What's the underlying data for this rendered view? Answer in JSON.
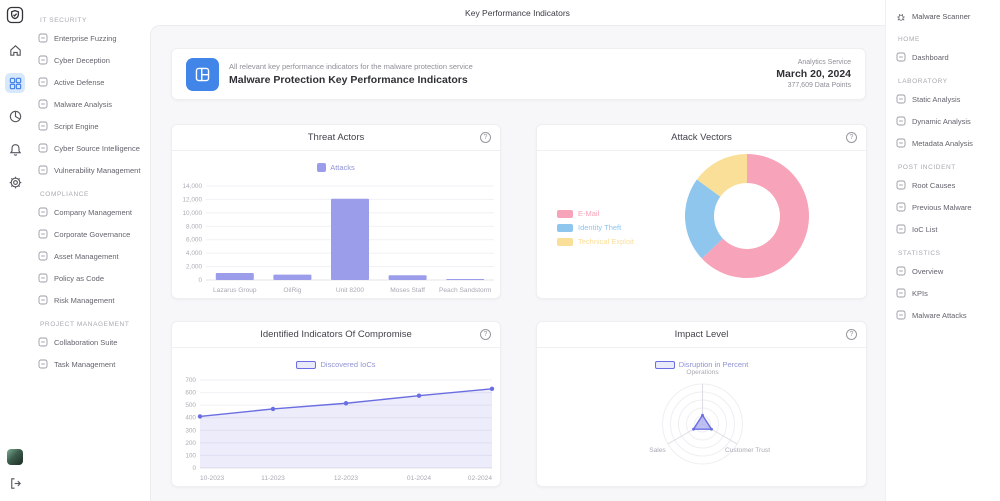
{
  "top_bar": {
    "title": "Key Performance Indicators"
  },
  "colors": {
    "accent": "#4285E8",
    "accent_light": "#D8E8FB",
    "purple": "#9B9DEB",
    "purple_dark": "#6B6EE0",
    "pink": "#F7A3B9",
    "blue": "#8FC6ED",
    "yellow": "#FADF98"
  },
  "left_rail": {
    "icons": [
      "app-logo-shield-icon",
      "home-icon",
      "dashboard-grid-icon",
      "pie-chart-icon",
      "notifications-bell-icon",
      "settings-gear-icon"
    ],
    "bottom": [
      "user-avatar",
      "logout-icon"
    ],
    "active_index": 2
  },
  "sidebar_left": {
    "sections": [
      {
        "label": "IT SECURITY",
        "items": [
          {
            "label": "Enterprise Fuzzing",
            "icon": "fuzzing-target-icon"
          },
          {
            "label": "Cyber Deception",
            "icon": "deception-mask-icon"
          },
          {
            "label": "Active Defense",
            "icon": "active-defense-shield-icon"
          },
          {
            "label": "Malware Analysis",
            "icon": "malware-bug-icon"
          },
          {
            "label": "Script Engine",
            "icon": "code-brackets-icon"
          },
          {
            "label": "Cyber Source Intelligence",
            "icon": "intelligence-search-icon"
          },
          {
            "label": "Vulnerability Management",
            "icon": "vulnerability-gear-icon"
          }
        ]
      },
      {
        "label": "COMPLIANCE",
        "items": [
          {
            "label": "Company Management",
            "icon": "company-building-icon"
          },
          {
            "label": "Corporate Governance",
            "icon": "governance-bank-icon"
          },
          {
            "label": "Asset Management",
            "icon": "asset-briefcase-icon"
          },
          {
            "label": "Policy as Code",
            "icon": "policy-document-icon"
          },
          {
            "label": "Risk Management",
            "icon": "risk-warning-icon"
          }
        ]
      },
      {
        "label": "PROJECT MANAGEMENT",
        "items": [
          {
            "label": "Collaboration Suite",
            "icon": "collaboration-people-icon"
          },
          {
            "label": "Task Management",
            "icon": "task-checklist-icon"
          }
        ]
      }
    ]
  },
  "sidebar_right": {
    "brand": {
      "label": "Malware Scanner",
      "icon": "bug-icon"
    },
    "sections": [
      {
        "label": "HOME",
        "items": [
          {
            "label": "Dashboard",
            "icon": "dashboard-layout-icon"
          }
        ]
      },
      {
        "label": "LABORATORY",
        "items": [
          {
            "label": "Static Analysis",
            "icon": "static-analysis-icon"
          },
          {
            "label": "Dynamic Analysis",
            "icon": "dynamic-analysis-icon"
          },
          {
            "label": "Metadata Analysis",
            "icon": "metadata-document-icon"
          }
        ]
      },
      {
        "label": "POST INCIDENT",
        "items": [
          {
            "label": "Root Causes",
            "icon": "root-causes-list-icon"
          },
          {
            "label": "Previous Malware",
            "icon": "previous-malware-grid-icon"
          },
          {
            "label": "IoC List",
            "icon": "ioc-list-icon"
          }
        ]
      },
      {
        "label": "STATISTICS",
        "items": [
          {
            "label": "Overview",
            "icon": "overview-chart-icon"
          },
          {
            "label": "KPIs",
            "icon": "kpi-gauge-icon"
          },
          {
            "label": "Malware Attacks",
            "icon": "malware-attacks-icon"
          }
        ]
      }
    ]
  },
  "header_card": {
    "subtitle": "All relevant key performance indicators for the malware protection service",
    "title": "Malware Protection Key Performance Indicators",
    "service": "Analytics Service",
    "date": "March 20, 2024",
    "data_points": "377,609 Data Points"
  },
  "help_glyph": "?",
  "chart_data": [
    {
      "type": "bar",
      "title": "Threat Actors",
      "legend": [
        {
          "name": "Attacks",
          "color": "#9B9DEB"
        }
      ],
      "categories": [
        "Lazarus Group",
        "OilRig",
        "Unit 8200",
        "Moses Staff",
        "Peach Sandstorm"
      ],
      "values": [
        1050,
        800,
        12100,
        700,
        150
      ],
      "ylim": [
        0,
        14000
      ],
      "ytick_step": 2000,
      "grid": true,
      "legend_position": "top"
    },
    {
      "type": "pie",
      "title": "Attack Vectors",
      "slices": [
        {
          "label": "E-Mail",
          "value": 63,
          "color": "#F7A3B9"
        },
        {
          "label": "Identity Theft",
          "value": 22,
          "color": "#8FC6ED"
        },
        {
          "label": "Technical Exploit",
          "value": 15,
          "color": "#FADF98"
        }
      ],
      "donut": true,
      "legend_position": "left"
    },
    {
      "type": "area",
      "title": "Identified Indicators Of Compromise",
      "legend": [
        {
          "name": "Discovered IoCs",
          "color": "#6B6EE0"
        }
      ],
      "x": [
        "10-2023",
        "11-2023",
        "12-2023",
        "01-2024",
        "02-2024"
      ],
      "values": [
        410,
        470,
        515,
        575,
        630
      ],
      "ylim": [
        0,
        700
      ],
      "ytick_step": 100,
      "grid": true,
      "legend_position": "top"
    },
    {
      "type": "radar",
      "title": "Impact Level",
      "legend": [
        {
          "name": "Disruption in Percent",
          "color": "#6B6EE0"
        }
      ],
      "axes": [
        "Operations",
        "Customer Trust",
        "Sales"
      ],
      "values": [
        22,
        26,
        26
      ],
      "max": 100,
      "rings": 5,
      "legend_position": "top"
    }
  ]
}
